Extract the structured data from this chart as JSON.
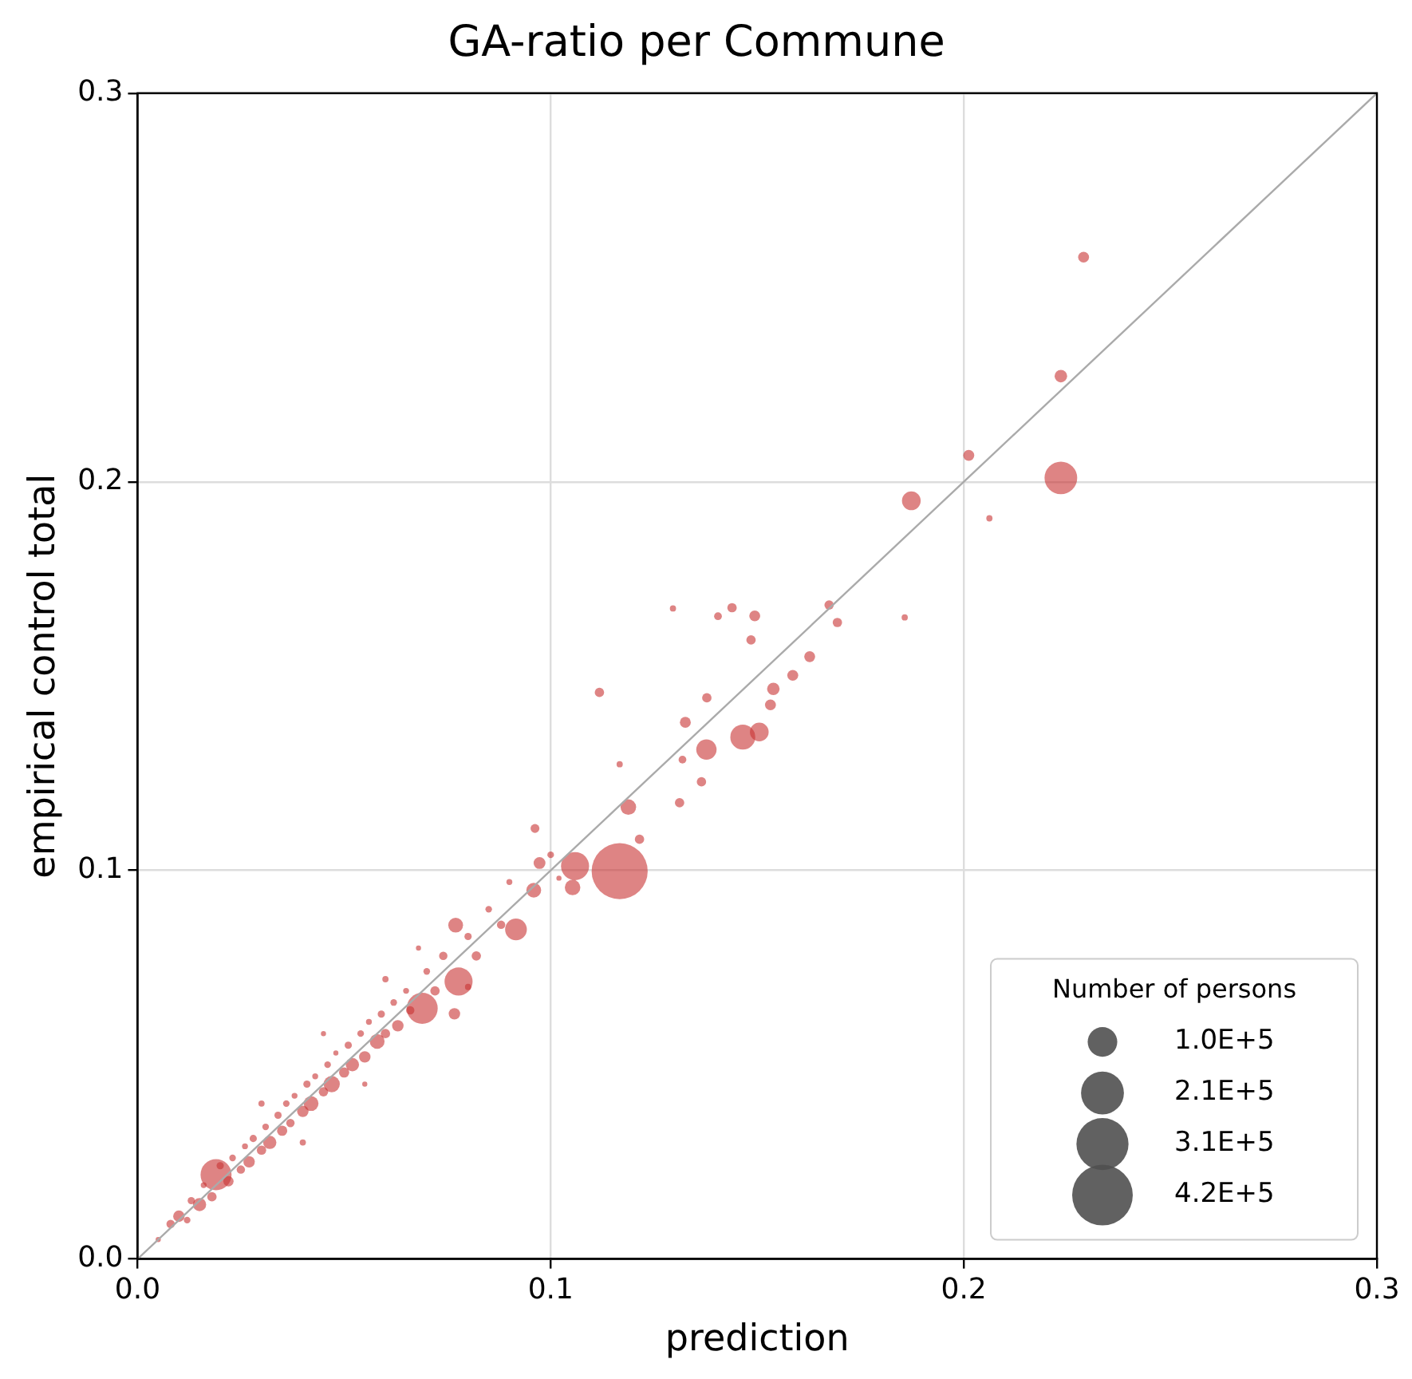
{
  "chart_data": {
    "type": "bubble",
    "title": "GA-ratio per Commune",
    "xlabel": "prediction",
    "ylabel": "empirical control total",
    "legend_title": "Number of persons",
    "grid": true,
    "xlim": [
      0,
      0.3
    ],
    "ylim": [
      0,
      0.3
    ],
    "xticks": [
      {
        "value": 0,
        "label": "0.0"
      },
      0.1,
      0.2,
      0.3
    ],
    "yticks": [
      {
        "value": 0,
        "label": "0.0"
      },
      0.1,
      0.2,
      0.3
    ],
    "size_legend": [
      {
        "value": 100000,
        "label": "1.0E+5"
      },
      {
        "value": 210000,
        "label": "2.1E+5"
      },
      {
        "value": 310000,
        "label": "3.1E+5"
      },
      {
        "value": 420000,
        "label": "4.2E+5"
      }
    ],
    "series": [
      {
        "color": "#c83232",
        "x": [
          0.005,
          0.008,
          0.01,
          0.012,
          0.013,
          0.015,
          0.016,
          0.018,
          0.019,
          0.02,
          0.022,
          0.023,
          0.025,
          0.026,
          0.027,
          0.028,
          0.03,
          0.031,
          0.032,
          0.034,
          0.035,
          0.036,
          0.037,
          0.038,
          0.04,
          0.041,
          0.042,
          0.043,
          0.045,
          0.046,
          0.047,
          0.048,
          0.05,
          0.051,
          0.052,
          0.054,
          0.055,
          0.056,
          0.058,
          0.059,
          0.06,
          0.062,
          0.063,
          0.065,
          0.066,
          0.0689,
          0.07,
          0.072,
          0.074,
          0.0767,
          0.077,
          0.0777,
          0.08,
          0.082,
          0.085,
          0.088,
          0.0916,
          0.0959,
          0.0973,
          0.0962,
          0.09,
          0.045,
          0.055,
          0.03,
          0.068,
          0.08,
          0.06,
          0.04,
          0.1,
          0.102,
          0.2235,
          0.2012,
          0.2235,
          0.1873,
          0.1857,
          0.1674,
          0.1694,
          0.1627,
          0.1586,
          0.1539,
          0.1532,
          0.1505,
          0.1465,
          0.1377,
          0.1439,
          0.1494,
          0.1405,
          0.1485,
          0.1118,
          0.1378,
          0.1326,
          0.1365,
          0.1312,
          0.1188,
          0.1167,
          0.1059,
          0.1215,
          0.1053,
          0.1167,
          0.1319,
          0.1296,
          0.229,
          0.2062
        ],
        "values": [
          0.005,
          0.009,
          0.011,
          0.01,
          0.015,
          0.014,
          0.019,
          0.016,
          0.0217,
          0.024,
          0.02,
          0.026,
          0.023,
          0.029,
          0.025,
          0.031,
          0.028,
          0.034,
          0.03,
          0.037,
          0.033,
          0.04,
          0.035,
          0.042,
          0.038,
          0.045,
          0.04,
          0.047,
          0.043,
          0.05,
          0.045,
          0.053,
          0.048,
          0.055,
          0.05,
          0.058,
          0.052,
          0.061,
          0.056,
          0.063,
          0.058,
          0.066,
          0.06,
          0.069,
          0.064,
          0.0645,
          0.074,
          0.069,
          0.078,
          0.0631,
          0.0859,
          0.0714,
          0.083,
          0.078,
          0.09,
          0.086,
          0.0848,
          0.0949,
          0.1019,
          0.1108,
          0.097,
          0.058,
          0.045,
          0.04,
          0.08,
          0.07,
          0.072,
          0.03,
          0.104,
          0.098,
          0.2272,
          0.2068,
          0.201,
          0.1951,
          0.1651,
          0.1683,
          0.1638,
          0.155,
          0.1502,
          0.1467,
          0.1426,
          0.1356,
          0.1343,
          0.1311,
          0.1676,
          0.1655,
          0.1654,
          0.1593,
          0.1458,
          0.1444,
          0.1381,
          0.1228,
          0.1174,
          0.1163,
          0.0998,
          0.1011,
          0.108,
          0.0956,
          0.1273,
          0.1285,
          0.1674,
          0.2578,
          0.1906
        ],
        "sizes": [
          3000,
          8000,
          15000,
          5000,
          6000,
          20000,
          4000,
          10000,
          110000,
          6000,
          12000,
          5000,
          8000,
          4000,
          15000,
          6000,
          10000,
          5000,
          20000,
          6000,
          12000,
          5000,
          8000,
          4000,
          15000,
          6000,
          25000,
          4000,
          10000,
          5000,
          30000,
          3000,
          12000,
          6000,
          20000,
          5000,
          15000,
          4000,
          25000,
          6000,
          10000,
          5000,
          15000,
          4000,
          8000,
          110000,
          5000,
          10000,
          8000,
          15000,
          25000,
          90000,
          6000,
          10000,
          5000,
          8000,
          54000,
          25000,
          16000,
          9000,
          4000,
          3000,
          3000,
          4400,
          3000,
          4400,
          4400,
          4400,
          5000,
          3000,
          18000,
          14000,
          122000,
          40000,
          4400,
          10000,
          10000,
          13600,
          13600,
          17700,
          13600,
          40000,
          71000,
          47000,
          10000,
          13600,
          6900,
          10000,
          10000,
          10000,
          13600,
          10000,
          10000,
          27700,
          359000,
          90000,
          10000,
          27700,
          4400,
          6900,
          4400,
          13600,
          4400
        ]
      },
      {
        "type": "line",
        "color": "#aaaaaa",
        "x": [
          0,
          0.3
        ],
        "values": [
          0,
          0.3
        ]
      }
    ]
  }
}
